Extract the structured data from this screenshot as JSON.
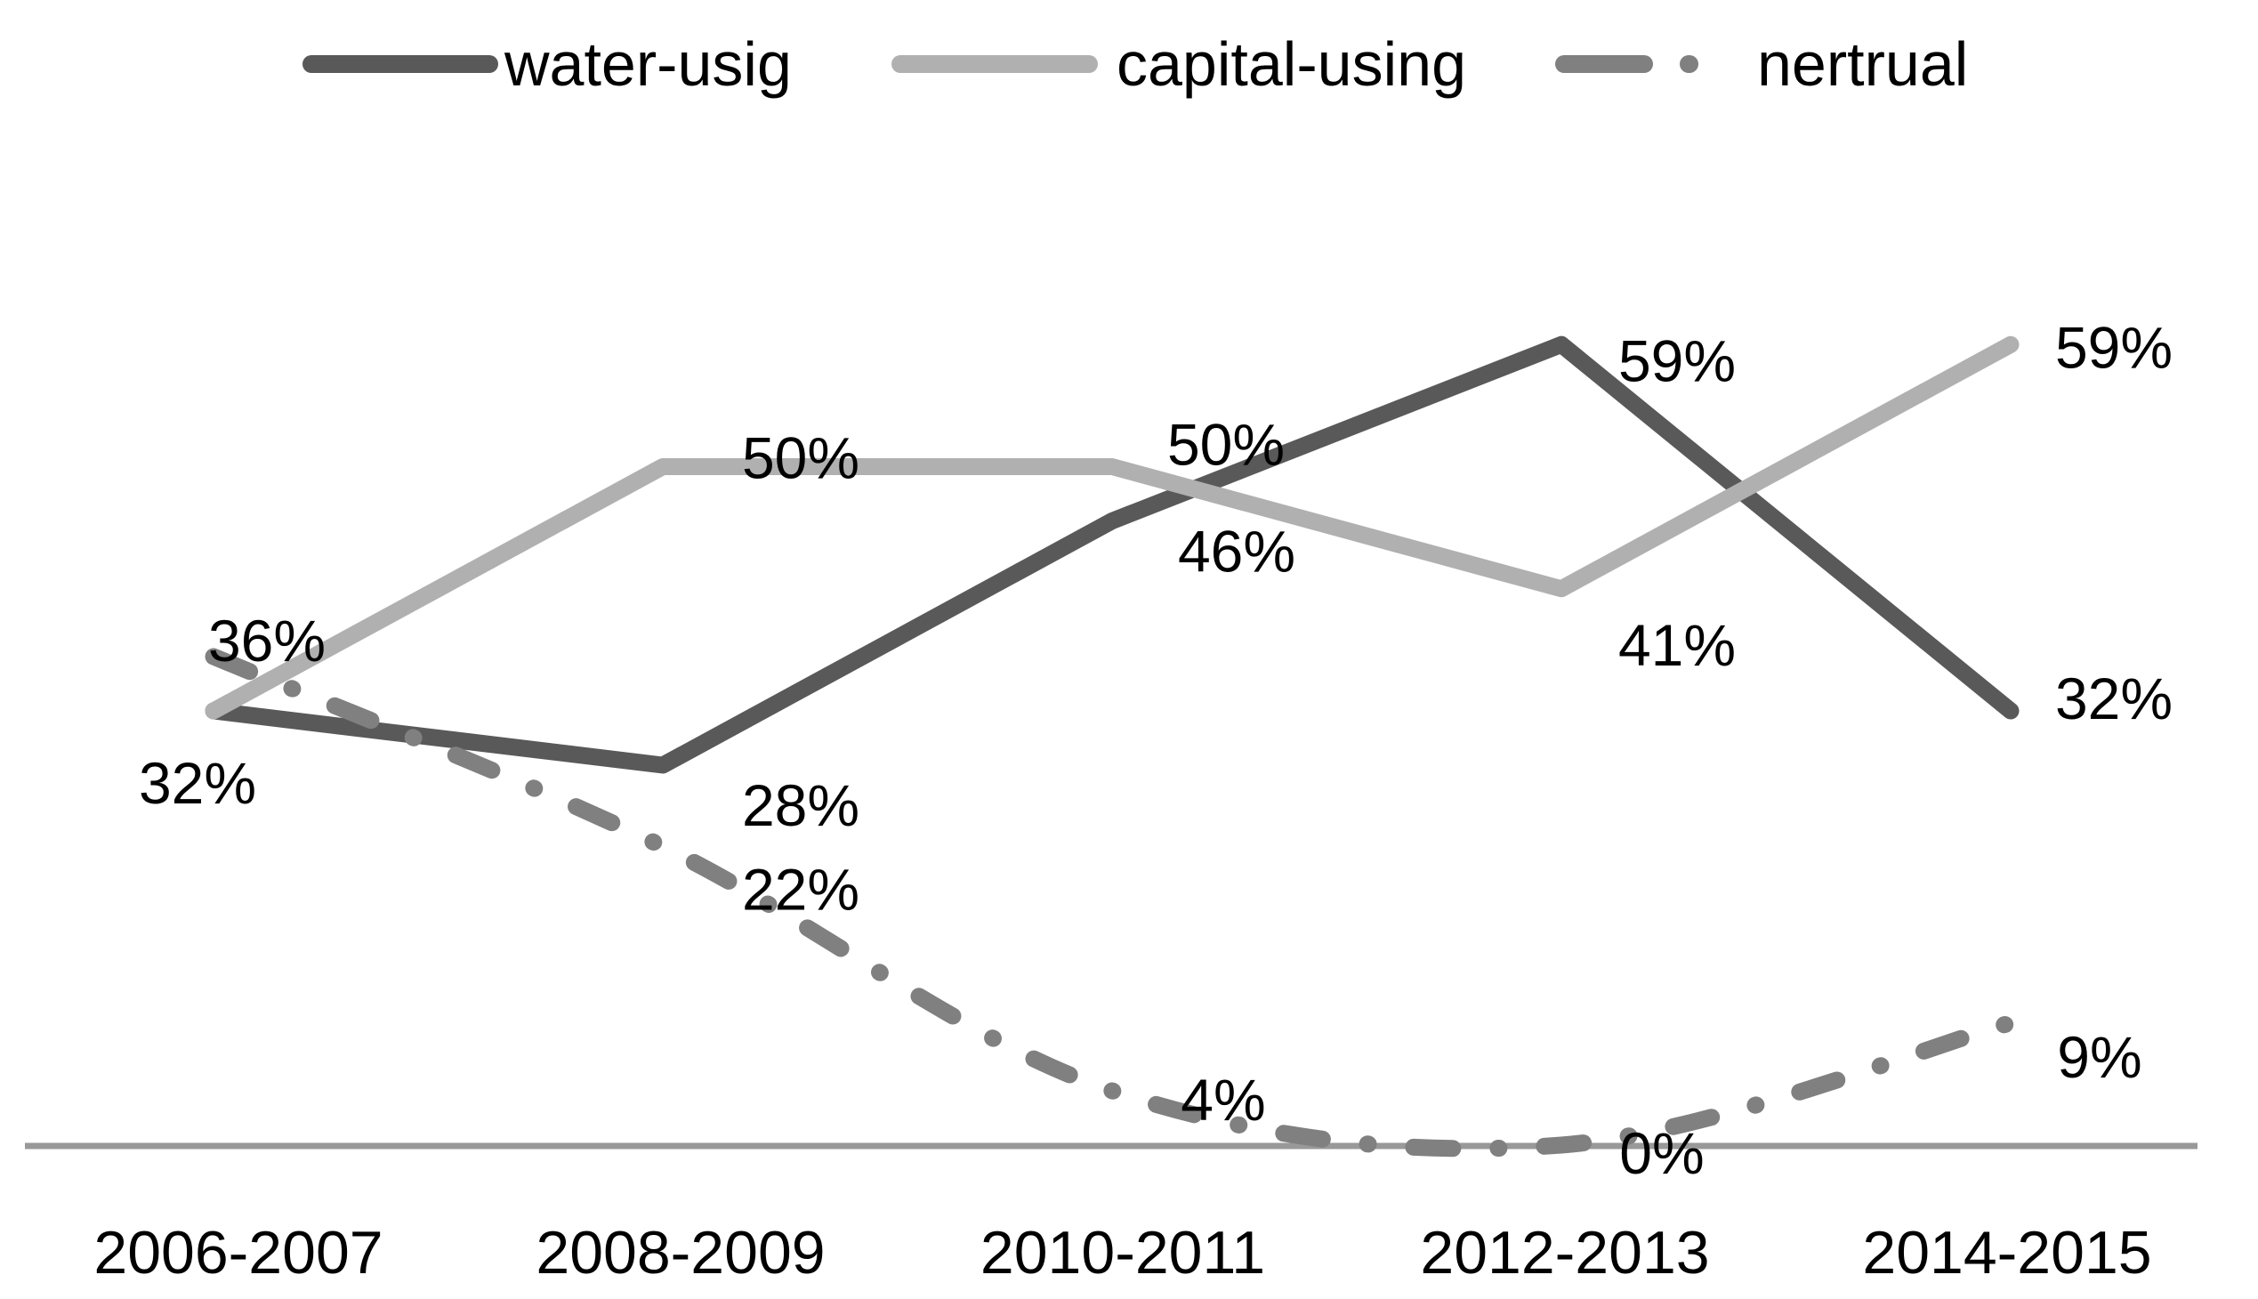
{
  "chart_data": {
    "type": "line",
    "title": "",
    "xlabel": "",
    "ylabel": "",
    "categories": [
      "2006-2007",
      "2008-2009",
      "2010-2011",
      "2012-2013",
      "2014-2015"
    ],
    "series": [
      {
        "name": "water-usig",
        "values": [
          32,
          28,
          46,
          59,
          32
        ],
        "data_labels": [
          "32%",
          "28%",
          "46%",
          "59%",
          "32%"
        ],
        "color": "#595959",
        "style": "solid"
      },
      {
        "name": "capital-using",
        "values": [
          32,
          50,
          50,
          41,
          59
        ],
        "data_labels": [
          null,
          "50%",
          "50%",
          "41%",
          "59%"
        ],
        "color": "#b0b0b0",
        "style": "solid"
      },
      {
        "name": "nertrual",
        "values": [
          36,
          22,
          4,
          0,
          9
        ],
        "data_labels": [
          "36%",
          "22%",
          "4%",
          "0%",
          "9%"
        ],
        "color": "#808080",
        "style": "dash-dot"
      }
    ],
    "ylim": [
      0,
      65
    ],
    "y_axis_visible": false,
    "x_axis_line_color": "#999999",
    "grid": false,
    "legend_position": "top",
    "background": "#ffffff",
    "text_color": "#000000"
  }
}
